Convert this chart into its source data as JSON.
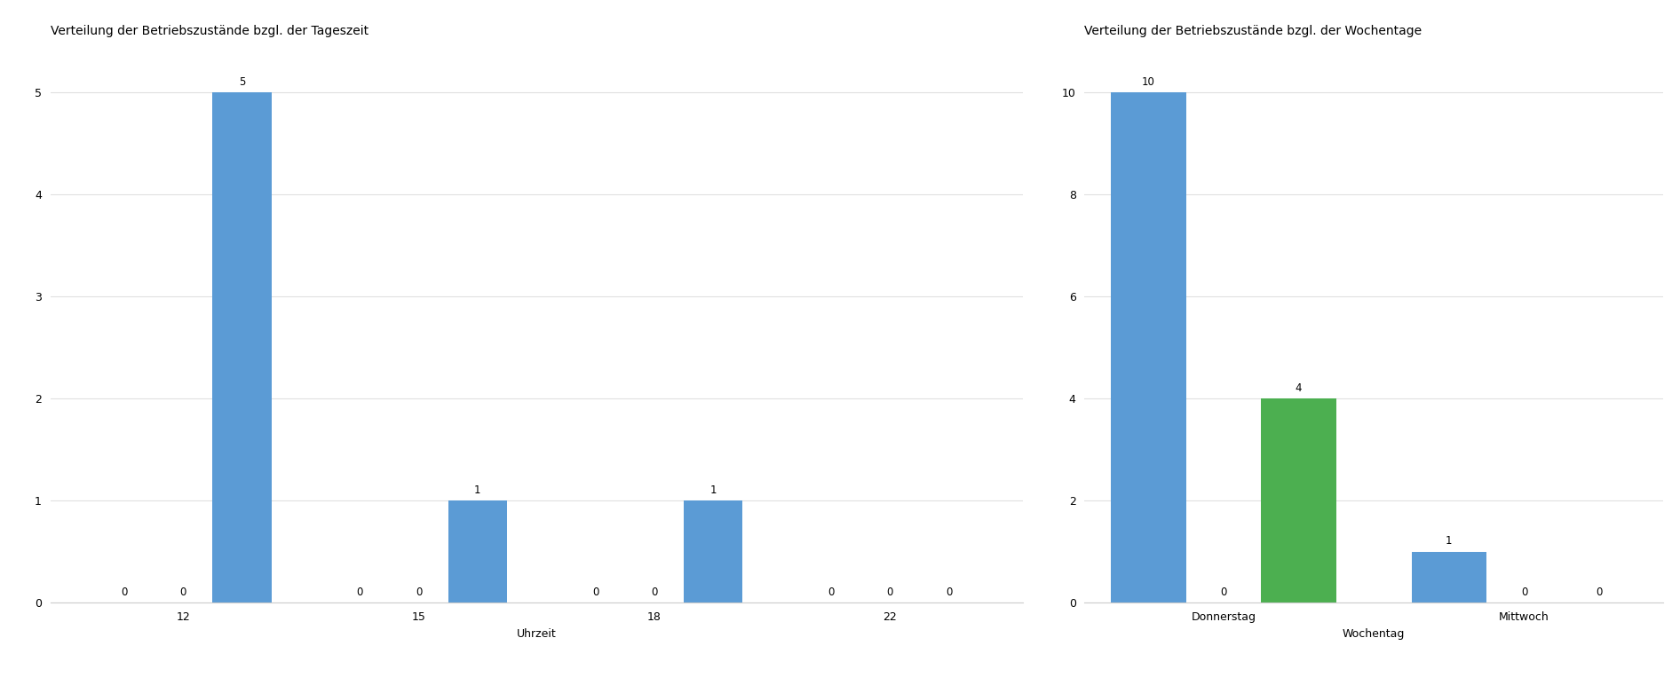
{
  "left_chart": {
    "title": "Verteilung der Betriebszustände bzgl. der Tageszeit",
    "xlabel": "Uhrzeit",
    "hours": [
      12,
      15,
      18,
      22
    ],
    "operative": [
      0,
      0,
      0,
      0
    ],
    "inoperative_unknown": [
      0,
      0,
      0,
      0
    ],
    "plugged": [
      5,
      1,
      1,
      0
    ],
    "ylim": [
      0,
      5.5
    ],
    "yticks": [
      0,
      1,
      2,
      3,
      4,
      5
    ]
  },
  "right_chart": {
    "title": "Verteilung der Betriebszustände bzgl. der Wochentage",
    "xlabel": "Wochentag",
    "days": [
      "Donnerstag",
      "Mittwoch"
    ],
    "plugged": [
      10,
      1
    ],
    "inoperative_unknown": [
      0,
      0
    ],
    "operative": [
      4,
      0
    ],
    "ylim": [
      0,
      11
    ],
    "yticks": [
      0,
      2,
      4,
      6,
      8,
      10
    ]
  },
  "colors": {
    "operative": "#4caf50",
    "inoperative_unknown": "#e53935",
    "plugged": "#5b9bd5"
  },
  "bg_color": "#ffffff",
  "title_fontsize": 10,
  "tick_fontsize": 9,
  "label_fontsize": 9,
  "bar_width": 0.25,
  "annotation_fontsize": 8.5
}
